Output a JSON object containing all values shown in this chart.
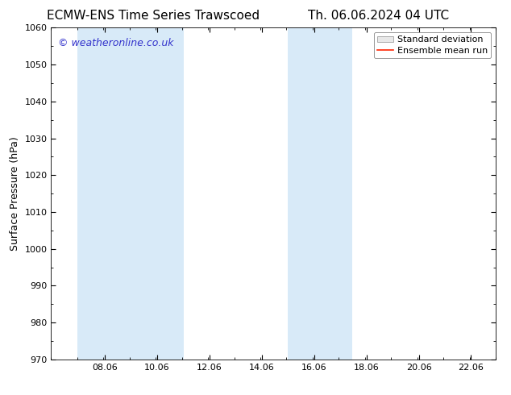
{
  "title_left": "ECMW-ENS Time Series Trawscoed",
  "title_right": "Th. 06.06.2024 04 UTC",
  "ylabel": "Surface Pressure (hPa)",
  "ylim": [
    970,
    1060
  ],
  "yticks": [
    970,
    980,
    990,
    1000,
    1010,
    1020,
    1030,
    1040,
    1050,
    1060
  ],
  "xlim": [
    6.0,
    23.0
  ],
  "xticks": [
    8.06,
    10.06,
    12.06,
    14.06,
    16.06,
    18.06,
    20.06,
    22.06
  ],
  "xlabel_labels": [
    "08.06",
    "10.06",
    "12.06",
    "14.06",
    "16.06",
    "18.06",
    "20.06",
    "22.06"
  ],
  "shaded_bands": [
    {
      "xmin": 7.0,
      "xmax": 9.06
    },
    {
      "xmin": 9.06,
      "xmax": 11.06
    },
    {
      "xmin": 15.06,
      "xmax": 16.06
    },
    {
      "xmin": 16.06,
      "xmax": 17.5
    }
  ],
  "shade_color": "#d8eaf8",
  "shade_alpha": 1.0,
  "watermark_text": "© weatheronline.co.uk",
  "watermark_color": "#3333cc",
  "watermark_fontsize": 9,
  "legend_std_label": "Standard deviation",
  "legend_ens_label": "Ensemble mean run",
  "legend_std_facecolor": "#e8e8e8",
  "legend_std_edgecolor": "#aaaaaa",
  "legend_ens_color": "#ff2200",
  "background_color": "#ffffff",
  "title_fontsize": 11,
  "tick_fontsize": 8,
  "ylabel_fontsize": 9,
  "legend_fontsize": 8
}
